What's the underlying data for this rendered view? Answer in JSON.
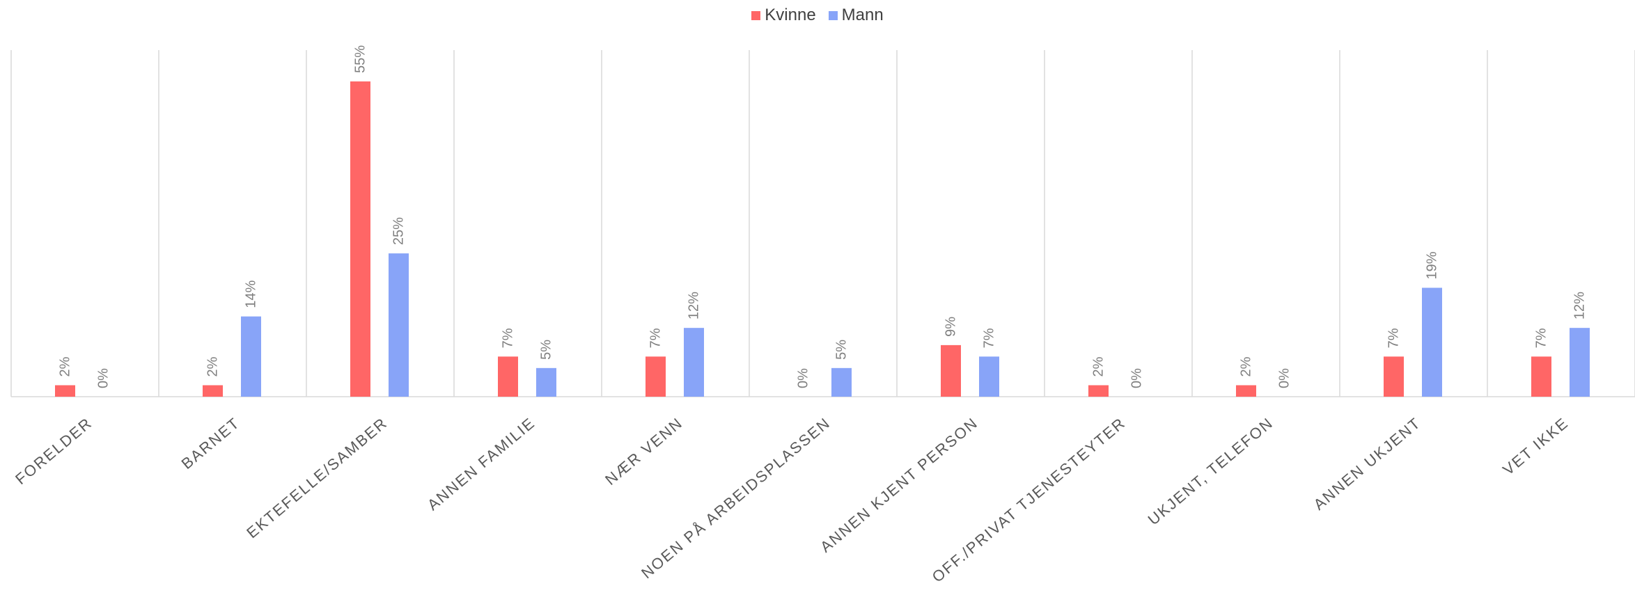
{
  "chart_data": {
    "type": "bar",
    "categories": [
      "FORELDER",
      "BARNET",
      "EKTEFELLE/SAMBER",
      "ANNEN FAMILIE",
      "NÆR VENN",
      "NOEN PÅ ARBEIDSPLASSEN",
      "ANNEN KJENT PERSON",
      "OFF./PRIVAT TJENESTEYTER",
      "UKJENT, TELEFON",
      "ANNEN UKJENT",
      "VET IKKE"
    ],
    "series": [
      {
        "name": "Kvinne",
        "color": "#FF6666",
        "values": [
          2,
          2,
          55,
          7,
          7,
          0,
          9,
          2,
          2,
          7,
          7
        ],
        "labels": [
          "2%",
          "2%",
          "55%",
          "7%",
          "7%",
          "0%",
          "9%",
          "2%",
          "2%",
          "7%",
          "7%"
        ]
      },
      {
        "name": "Mann",
        "color": "#88A4F8",
        "values": [
          0,
          14,
          25,
          5,
          12,
          5,
          7,
          0,
          0,
          19,
          12
        ],
        "labels": [
          "0%",
          "14%",
          "25%",
          "5%",
          "12%",
          "5%",
          "7%",
          "0%",
          "0%",
          "19%",
          "12%"
        ]
      }
    ],
    "unit": "%",
    "ylim": [
      0,
      57
    ],
    "legend_position": "top-center",
    "grid": "vertical-category-separators"
  }
}
